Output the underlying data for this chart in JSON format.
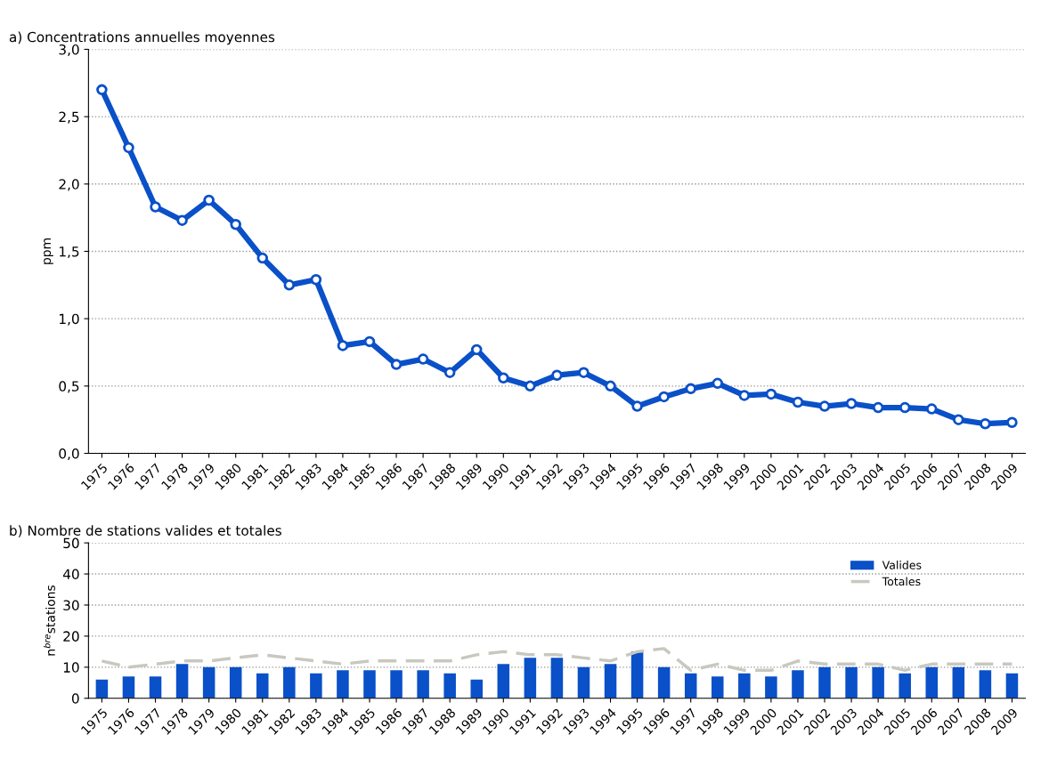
{
  "chart_data": [
    {
      "type": "line",
      "title": "a) Concentrations annuelles moyennes",
      "ylabel": "ppm",
      "categories": [
        "1975",
        "1976",
        "1977",
        "1978",
        "1979",
        "1980",
        "1981",
        "1982",
        "1983",
        "1984",
        "1985",
        "1986",
        "1987",
        "1988",
        "1989",
        "1990",
        "1991",
        "1992",
        "1993",
        "1994",
        "1995",
        "1996",
        "1997",
        "1998",
        "1999",
        "2000",
        "2001",
        "2002",
        "2003",
        "2004",
        "2005",
        "2006",
        "2007",
        "2008",
        "2009"
      ],
      "series": [
        {
          "color": "#0a50c8",
          "values": [
            2.7,
            2.27,
            1.83,
            1.73,
            1.88,
            1.7,
            1.45,
            1.25,
            1.29,
            0.8,
            0.83,
            0.66,
            0.7,
            0.6,
            0.77,
            0.56,
            0.5,
            0.58,
            0.6,
            0.5,
            0.35,
            0.42,
            0.48,
            0.52,
            0.43,
            0.44,
            0.38,
            0.35,
            0.37,
            0.34,
            0.34,
            0.33,
            0.25,
            0.22,
            0.23
          ]
        }
      ],
      "ylim": [
        0,
        3
      ],
      "yticks": [
        {
          "value": 0,
          "label": "0,0"
        },
        {
          "value": 0.5,
          "label": "0,5"
        },
        {
          "value": 1,
          "label": "1,0"
        },
        {
          "value": 1.5,
          "label": "1,5"
        },
        {
          "value": 2,
          "label": "2,0"
        },
        {
          "value": 2.5,
          "label": "2,5"
        },
        {
          "value": 3,
          "label": "3,0"
        }
      ],
      "grid": "y",
      "marker": "circle",
      "line_style": "solid",
      "legend": false
    },
    {
      "type": "bar",
      "title": "b) Nombre de stations valides et totales",
      "ylabel": "n$^{bre}$stations",
      "categories": [
        "1975",
        "1976",
        "1977",
        "1978",
        "1979",
        "1980",
        "1981",
        "1982",
        "1983",
        "1984",
        "1985",
        "1986",
        "1987",
        "1988",
        "1989",
        "1990",
        "1991",
        "1992",
        "1993",
        "1994",
        "1995",
        "1996",
        "1997",
        "1998",
        "1999",
        "2000",
        "2001",
        "2002",
        "2003",
        "2004",
        "2005",
        "2006",
        "2007",
        "2008",
        "2009"
      ],
      "series": [
        {
          "name": "Valides",
          "type": "bar",
          "color": "#0a50c8",
          "values": [
            6,
            7,
            7,
            11,
            10,
            10,
            8,
            10,
            8,
            9,
            9,
            9,
            9,
            8,
            6,
            11,
            13,
            13,
            10,
            11,
            15,
            10,
            8,
            7,
            8,
            7,
            9,
            10,
            10,
            10,
            8,
            10,
            10,
            9,
            8
          ]
        },
        {
          "name": "Totales",
          "type": "line",
          "color": "#c8c8c0",
          "line_style": "dashed",
          "values": [
            12,
            10,
            11,
            12,
            12,
            13,
            14,
            13,
            12,
            11,
            12,
            12,
            12,
            12,
            14,
            15,
            14,
            14,
            13,
            12,
            15,
            16,
            9,
            11,
            9,
            9,
            12,
            11,
            11,
            11,
            9,
            11,
            11,
            11,
            11
          ]
        }
      ],
      "ylim": [
        0,
        50
      ],
      "yticks": [
        0,
        10,
        20,
        30,
        40,
        50
      ],
      "grid": "y",
      "legend": "top right"
    }
  ]
}
